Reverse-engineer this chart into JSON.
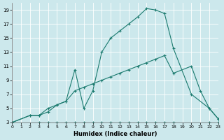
{
  "xlabel": "Humidex (Indice chaleur)",
  "background_color": "#cce8ec",
  "line_color": "#1a7a6e",
  "xlim": [
    0,
    23
  ],
  "ylim": [
    3,
    20
  ],
  "xticks": [
    0,
    1,
    2,
    3,
    4,
    5,
    6,
    7,
    8,
    9,
    10,
    11,
    12,
    13,
    14,
    15,
    16,
    17,
    18,
    19,
    20,
    21,
    22,
    23
  ],
  "yticks": [
    3,
    5,
    7,
    9,
    11,
    13,
    15,
    17,
    19
  ],
  "line1_x": [
    0,
    3,
    4,
    5,
    6,
    7,
    8,
    9,
    10,
    11,
    12,
    13,
    14,
    15,
    16,
    17,
    18,
    22,
    23
  ],
  "line1_y": [
    3,
    3,
    3,
    3,
    3,
    3,
    3,
    3,
    3,
    3,
    3,
    3,
    3,
    3,
    3,
    3,
    3,
    3,
    3
  ],
  "line2_x": [
    0,
    2,
    3,
    4,
    5,
    6,
    7,
    8,
    9,
    10,
    11,
    12,
    13,
    14,
    15,
    16,
    17,
    18,
    20,
    21,
    22,
    23
  ],
  "line2_y": [
    3,
    4,
    4,
    5,
    5.5,
    6,
    7.5,
    8,
    8.5,
    9,
    9.5,
    10,
    10.5,
    11,
    11.5,
    12,
    12.5,
    10,
    11,
    7.5,
    5,
    3.5
  ],
  "line3_x": [
    0,
    2,
    3,
    4,
    5,
    6,
    7,
    8,
    9,
    10,
    11,
    12,
    13,
    14,
    15,
    16,
    17,
    18,
    20,
    22,
    23
  ],
  "line3_y": [
    3,
    4,
    4,
    4.5,
    5.5,
    6,
    10.5,
    5,
    7.5,
    13,
    15,
    16,
    17,
    18,
    19.2,
    19,
    18.5,
    13.5,
    7,
    5,
    3.5
  ]
}
